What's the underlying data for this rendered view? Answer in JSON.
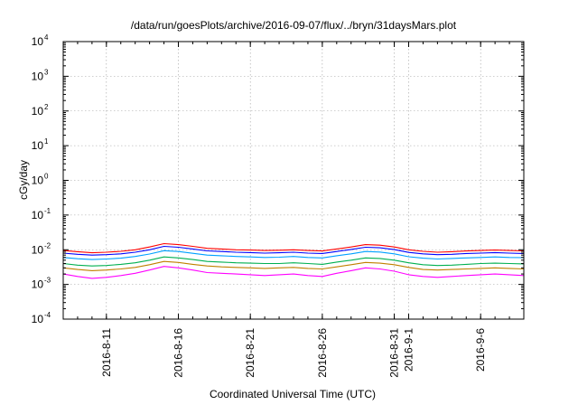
{
  "chart_data": {
    "type": "line",
    "title": "/data/run/goesPlots/archive/2016-09-07/flux/../bryn/31daysMars.plot",
    "xlabel": "Coordinated Universal Time (UTC)",
    "ylabel": "cGy/day",
    "yscale": "log",
    "ylim": [
      0.0001,
      10000
    ],
    "xlim": [
      "2016-08-08",
      "2016-09-09"
    ],
    "grid": true,
    "legend": "none",
    "y_ticks": [
      {
        "base": "10",
        "exp": "-4",
        "value": 0.0001
      },
      {
        "base": "10",
        "exp": "-3",
        "value": 0.001
      },
      {
        "base": "10",
        "exp": "-2",
        "value": 0.01
      },
      {
        "base": "10",
        "exp": "-1",
        "value": 0.1
      },
      {
        "base": "10",
        "exp": "0",
        "value": 1
      },
      {
        "base": "10",
        "exp": "1",
        "value": 10
      },
      {
        "base": "10",
        "exp": "2",
        "value": 100
      },
      {
        "base": "10",
        "exp": "3",
        "value": 1000
      },
      {
        "base": "10",
        "exp": "4",
        "value": 10000
      }
    ],
    "x_ticks": [
      {
        "label": "2016-8-11",
        "date": "2016-08-11"
      },
      {
        "label": "2016-8-16",
        "date": "2016-08-16"
      },
      {
        "label": "2016-8-21",
        "date": "2016-08-21"
      },
      {
        "label": "2016-8-26",
        "date": "2016-08-26"
      },
      {
        "label": "2016-8-31",
        "date": "2016-08-31"
      },
      {
        "label": "2016-9-1",
        "date": "2016-09-01"
      },
      {
        "label": "2016-9-6",
        "date": "2016-09-06"
      }
    ],
    "x": [
      "2016-08-08",
      "2016-08-09",
      "2016-08-10",
      "2016-08-11",
      "2016-08-12",
      "2016-08-13",
      "2016-08-14",
      "2016-08-15",
      "2016-08-16",
      "2016-08-17",
      "2016-08-18",
      "2016-08-19",
      "2016-08-20",
      "2016-08-21",
      "2016-08-22",
      "2016-08-23",
      "2016-08-24",
      "2016-08-25",
      "2016-08-26",
      "2016-08-27",
      "2016-08-28",
      "2016-08-29",
      "2016-08-30",
      "2016-08-31",
      "2016-09-01",
      "2016-09-02",
      "2016-09-03",
      "2016-09-04",
      "2016-09-05",
      "2016-09-06",
      "2016-09-07",
      "2016-09-08",
      "2016-09-09"
    ],
    "series": [
      {
        "color": "#ff0000",
        "values": [
          0.0095,
          0.0088,
          0.0082,
          0.0085,
          0.009,
          0.01,
          0.012,
          0.015,
          0.014,
          0.0125,
          0.011,
          0.0105,
          0.01,
          0.0098,
          0.0095,
          0.0097,
          0.01,
          0.0095,
          0.0092,
          0.0105,
          0.012,
          0.014,
          0.0135,
          0.012,
          0.01,
          0.009,
          0.0085,
          0.0088,
          0.0092,
          0.0095,
          0.0098,
          0.0095,
          0.0093
        ]
      },
      {
        "color": "#0000ff",
        "values": [
          0.008,
          0.0074,
          0.007,
          0.0072,
          0.0076,
          0.0085,
          0.01,
          0.0125,
          0.0118,
          0.0105,
          0.0093,
          0.0089,
          0.0085,
          0.0083,
          0.008,
          0.0082,
          0.0085,
          0.008,
          0.0078,
          0.0089,
          0.0102,
          0.0118,
          0.0114,
          0.0101,
          0.0084,
          0.0076,
          0.0072,
          0.0074,
          0.0078,
          0.008,
          0.0083,
          0.008,
          0.0078
        ]
      },
      {
        "color": "#00a0ff",
        "values": [
          0.006,
          0.0055,
          0.0052,
          0.0054,
          0.0057,
          0.0064,
          0.0075,
          0.0094,
          0.0089,
          0.0079,
          0.007,
          0.0067,
          0.0064,
          0.0062,
          0.006,
          0.0061,
          0.0064,
          0.006,
          0.0058,
          0.0067,
          0.0076,
          0.0089,
          0.0086,
          0.0076,
          0.0063,
          0.0057,
          0.0054,
          0.0056,
          0.0058,
          0.006,
          0.0062,
          0.006,
          0.0059
        ]
      },
      {
        "color": "#00b050",
        "values": [
          0.004,
          0.0036,
          0.0034,
          0.0035,
          0.0038,
          0.0042,
          0.005,
          0.0062,
          0.0058,
          0.0052,
          0.0046,
          0.0044,
          0.0042,
          0.0041,
          0.004,
          0.004,
          0.0042,
          0.004,
          0.0038,
          0.0044,
          0.005,
          0.0058,
          0.0056,
          0.005,
          0.0042,
          0.0037,
          0.0035,
          0.0036,
          0.0038,
          0.004,
          0.0041,
          0.004,
          0.0039
        ]
      },
      {
        "color": "#c08000",
        "values": [
          0.003,
          0.0027,
          0.0025,
          0.0026,
          0.0028,
          0.0031,
          0.0037,
          0.0046,
          0.0043,
          0.0038,
          0.0034,
          0.0032,
          0.0031,
          0.003,
          0.0029,
          0.003,
          0.0031,
          0.0029,
          0.0028,
          0.0032,
          0.0037,
          0.0043,
          0.0041,
          0.0037,
          0.0031,
          0.0027,
          0.0026,
          0.0027,
          0.0028,
          0.0029,
          0.003,
          0.0029,
          0.0028
        ]
      },
      {
        "color": "#ff00ff",
        "values": [
          0.002,
          0.0017,
          0.0015,
          0.0016,
          0.0018,
          0.0021,
          0.0026,
          0.0033,
          0.003,
          0.0026,
          0.0022,
          0.0021,
          0.002,
          0.0019,
          0.0018,
          0.0019,
          0.002,
          0.0018,
          0.0017,
          0.0021,
          0.0025,
          0.003,
          0.0028,
          0.0024,
          0.0019,
          0.0017,
          0.0016,
          0.0017,
          0.0018,
          0.0019,
          0.002,
          0.0019,
          0.0018
        ]
      }
    ]
  }
}
